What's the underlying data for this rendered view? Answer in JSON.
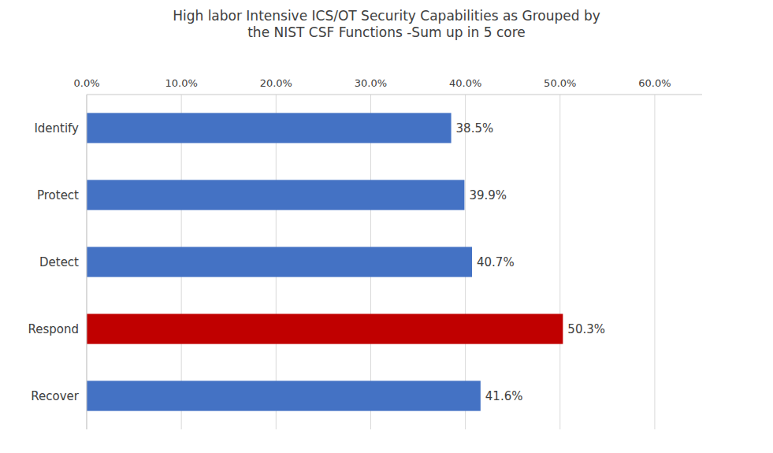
{
  "chart_data": {
    "type": "bar",
    "orientation": "horizontal",
    "title": "High labor Intensive ICS/OT Security Capabilities as Grouped by\nthe NIST CSF Functions -Sum up in 5 core",
    "categories": [
      "Identify",
      "Protect",
      "Detect",
      "Respond",
      "Recover"
    ],
    "values": [
      38.5,
      39.9,
      40.7,
      50.3,
      41.6
    ],
    "value_labels": [
      "38.5%",
      "39.9%",
      "40.7%",
      "50.3%",
      "41.6%"
    ],
    "colors": [
      "#4472C4",
      "#4472C4",
      "#4472C4",
      "#C00000",
      "#4472C4"
    ],
    "xlim": [
      0,
      65
    ],
    "xticks": [
      {
        "value": 0,
        "label": "0.0%"
      },
      {
        "value": 10,
        "label": "10.0%"
      },
      {
        "value": 20,
        "label": "20.0%"
      },
      {
        "value": 30,
        "label": "30.0%"
      },
      {
        "value": 40,
        "label": "40.0%"
      },
      {
        "value": 50,
        "label": "50.0%"
      },
      {
        "value": 60,
        "label": "60.0%"
      }
    ],
    "grid": true,
    "data_labels": true
  }
}
